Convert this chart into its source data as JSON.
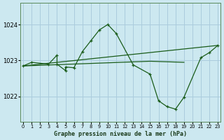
{
  "bg_color": "#cce8f0",
  "grid_color": "#aaccdd",
  "line_color": "#1a5c1a",
  "ylabel_ticks": [
    1022,
    1023,
    1024
  ],
  "xticks": [
    0,
    1,
    2,
    3,
    4,
    5,
    6,
    7,
    8,
    9,
    10,
    11,
    12,
    13,
    14,
    15,
    16,
    17,
    18,
    19,
    20,
    21,
    22,
    23
  ],
  "xlabel": "Graphe pression niveau de la mer (hPa)",
  "ylim": [
    1021.3,
    1024.6
  ],
  "xlim": [
    -0.3,
    23.3
  ],
  "series1": {
    "x": [
      0,
      1,
      3,
      4,
      4,
      5,
      5,
      6,
      7,
      8,
      9,
      10,
      11,
      13,
      15,
      16,
      17,
      18,
      19,
      21,
      22,
      23
    ],
    "y": [
      1022.85,
      1022.95,
      1022.9,
      1023.15,
      1022.9,
      1022.72,
      1022.82,
      1022.8,
      1023.25,
      1023.55,
      1023.85,
      1024.0,
      1023.75,
      1022.88,
      1022.62,
      1021.88,
      1021.72,
      1021.65,
      1021.98,
      1023.08,
      1023.22,
      1023.42
    ]
  },
  "series2": {
    "x": [
      0,
      15,
      19
    ],
    "y": [
      1022.85,
      1022.98,
      1022.95
    ]
  },
  "series3": {
    "x": [
      0,
      23
    ],
    "y": [
      1022.85,
      1023.42
    ]
  }
}
